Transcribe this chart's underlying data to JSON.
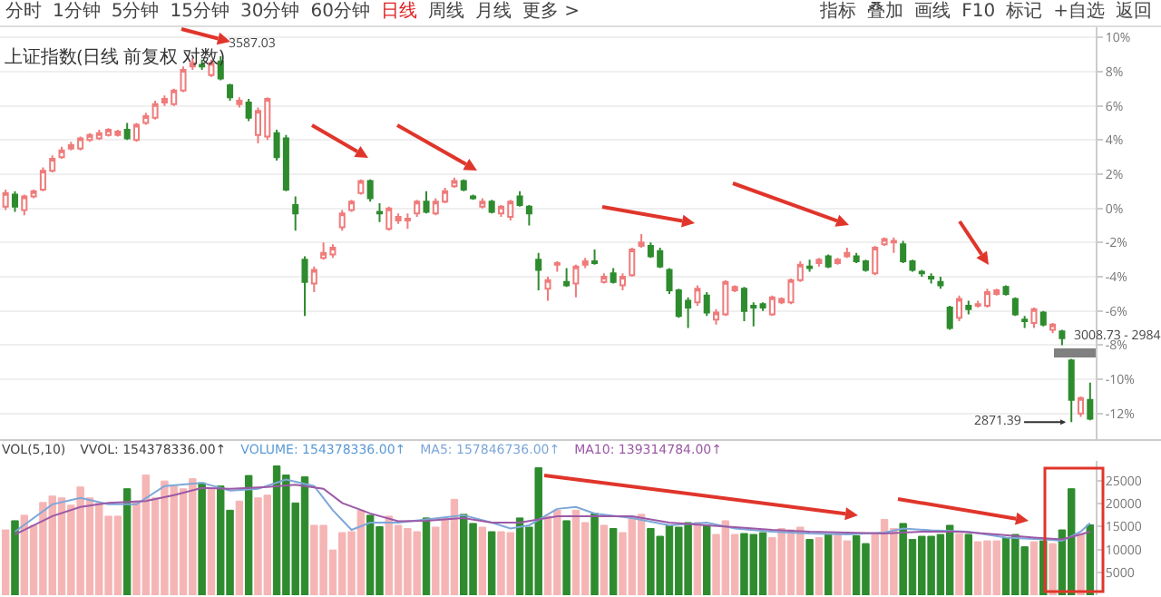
{
  "chart_data": [
    {
      "type": "other",
      "annotations": [
        "分时",
        "1分钟",
        "5分钟",
        "15分钟",
        "30分钟",
        "60分钟",
        "日线",
        "周线",
        "月线",
        "更多 >",
        "指标",
        "叠加",
        "画线",
        "F10",
        "标记",
        "+自选",
        "返回"
      ]
    },
    {
      "type": "candlestick",
      "title": "上证指数(日线 前复权 对数)",
      "categories": [
        null,
        null,
        null,
        null,
        null,
        null,
        null,
        null,
        null,
        null,
        null,
        null,
        null,
        null,
        null,
        null,
        null,
        null,
        null,
        null,
        null,
        null,
        null,
        null,
        null,
        null,
        null,
        null,
        null,
        null,
        null,
        null,
        null,
        null,
        null,
        null,
        null,
        null,
        null,
        null,
        null,
        null,
        null,
        null,
        null,
        null,
        null,
        null,
        null,
        null,
        null,
        null,
        null,
        null,
        null,
        null,
        null,
        null,
        null,
        null,
        null,
        null,
        null,
        null,
        null,
        null,
        null,
        null,
        null,
        null,
        null,
        null,
        null,
        null,
        null,
        null,
        null,
        null,
        null,
        null,
        null,
        null,
        null,
        null,
        null,
        null,
        null,
        null,
        null,
        null,
        null,
        null,
        null,
        null,
        null,
        null,
        null,
        null,
        null,
        null,
        null,
        null,
        null,
        null,
        null,
        null,
        null,
        null,
        null,
        null,
        null,
        null,
        null,
        null,
        null,
        null,
        null
      ],
      "ohlc": [
        [
          0.1,
          1.1,
          -0.1,
          0.9
        ],
        [
          0.8,
          1.0,
          -0.2,
          0.1
        ],
        [
          -0.1,
          0.8,
          -0.4,
          0.7
        ],
        [
          0.7,
          1.1,
          0.6,
          1.0
        ],
        [
          1.1,
          2.4,
          1.0,
          2.2
        ],
        [
          2.2,
          3.1,
          2.1,
          2.9
        ],
        [
          3.0,
          3.6,
          2.9,
          3.4
        ],
        [
          3.5,
          3.9,
          3.4,
          3.7
        ],
        [
          3.5,
          4.2,
          3.4,
          4.1
        ],
        [
          4.0,
          4.4,
          3.9,
          4.3
        ],
        [
          4.1,
          4.6,
          4.0,
          4.4
        ],
        [
          4.3,
          4.7,
          4.2,
          4.6
        ],
        [
          4.3,
          4.6,
          4.2,
          4.5
        ],
        [
          4.6,
          5.0,
          4.0,
          4.1
        ],
        [
          4.0,
          5.0,
          3.9,
          4.9
        ],
        [
          5.0,
          5.6,
          4.9,
          5.4
        ],
        [
          5.3,
          6.3,
          5.2,
          6.1
        ],
        [
          6.2,
          6.6,
          6.0,
          6.4
        ],
        [
          6.1,
          7.0,
          6.0,
          6.9
        ],
        [
          6.9,
          8.3,
          6.8,
          8.1
        ],
        [
          8.3,
          8.8,
          8.1,
          8.5
        ],
        [
          8.4,
          8.7,
          8.1,
          8.3
        ],
        [
          7.8,
          8.7,
          7.7,
          8.5
        ],
        [
          8.6,
          8.9,
          7.5,
          7.6
        ],
        [
          7.2,
          7.3,
          6.3,
          6.5
        ],
        [
          6.1,
          6.5,
          5.9,
          6.3
        ],
        [
          6.2,
          6.4,
          5.1,
          5.3
        ],
        [
          4.3,
          5.9,
          3.8,
          5.7
        ],
        [
          4.2,
          6.5,
          4.0,
          6.4
        ],
        [
          4.4,
          4.6,
          2.8,
          3.0
        ],
        [
          4.1,
          4.3,
          1.0,
          1.1
        ],
        [
          0.2,
          0.7,
          -1.3,
          -0.3
        ],
        [
          -3.0,
          -2.8,
          -6.3,
          -4.3
        ],
        [
          -4.4,
          -3.4,
          -4.9,
          -3.6
        ],
        [
          -2.9,
          -2.0,
          -3.0,
          -2.6
        ],
        [
          -2.7,
          -2.1,
          -2.9,
          -2.3
        ],
        [
          -1.1,
          -0.1,
          -1.3,
          -0.3
        ],
        [
          -0.1,
          0.5,
          -0.2,
          0.4
        ],
        [
          0.9,
          1.7,
          0.8,
          1.6
        ],
        [
          1.6,
          1.7,
          0.4,
          0.6
        ],
        [
          -0.2,
          0.3,
          -0.8,
          -0.3
        ],
        [
          -1.2,
          0.1,
          -1.3,
          0.0
        ],
        [
          -0.7,
          -0.3,
          -0.9,
          -0.5
        ],
        [
          -0.7,
          -0.3,
          -1.2,
          -0.6
        ],
        [
          -0.3,
          0.5,
          -0.5,
          0.4
        ],
        [
          0.4,
          1.0,
          -0.3,
          -0.2
        ],
        [
          -0.3,
          0.6,
          -0.4,
          0.4
        ],
        [
          0.4,
          1.2,
          0.3,
          1.0
        ],
        [
          1.3,
          1.8,
          1.2,
          1.6
        ],
        [
          1.6,
          1.7,
          1.0,
          1.1
        ],
        [
          0.7,
          0.8,
          0.5,
          0.6
        ],
        [
          0.1,
          0.6,
          0.0,
          0.4
        ],
        [
          0.4,
          0.5,
          -0.3,
          -0.2
        ],
        [
          -0.3,
          0.2,
          -0.5,
          0.1
        ],
        [
          -0.5,
          0.5,
          -0.7,
          0.4
        ],
        [
          0.7,
          1.0,
          0.1,
          0.2
        ],
        [
          0.1,
          0.2,
          -1.0,
          -0.3
        ],
        [
          -3.0,
          -2.6,
          -4.8,
          -3.6
        ],
        [
          -4.7,
          -4.0,
          -5.4,
          -4.2
        ],
        [
          -3.3,
          -3.1,
          -3.7,
          -3.2
        ],
        [
          -4.3,
          -3.5,
          -4.6,
          -4.5
        ],
        [
          -4.4,
          -3.3,
          -5.2,
          -3.4
        ],
        [
          -3.3,
          -2.9,
          -3.5,
          -3.1
        ],
        [
          -3.1,
          -2.4,
          -3.3,
          -3.2
        ],
        [
          -4.3,
          -3.8,
          -4.4,
          -4.0
        ],
        [
          -3.8,
          -3.5,
          -4.4,
          -4.3
        ],
        [
          -4.5,
          -3.8,
          -4.8,
          -4.0
        ],
        [
          -3.9,
          -2.3,
          -4.0,
          -2.4
        ],
        [
          -2.2,
          -1.5,
          -2.3,
          -2.0
        ],
        [
          -2.2,
          -2.0,
          -2.9,
          -2.8
        ],
        [
          -2.5,
          -2.3,
          -3.5,
          -3.4
        ],
        [
          -3.6,
          -3.5,
          -5.0,
          -4.8
        ],
        [
          -4.8,
          -4.7,
          -6.4,
          -6.3
        ],
        [
          -5.4,
          -5.2,
          -7.0,
          -5.8
        ],
        [
          -5.5,
          -4.5,
          -5.7,
          -4.7
        ],
        [
          -5.1,
          -4.9,
          -6.3,
          -6.1
        ],
        [
          -6.5,
          -5.9,
          -6.8,
          -6.1
        ],
        [
          -6.2,
          -4.2,
          -6.3,
          -4.3
        ],
        [
          -4.8,
          -4.5,
          -4.9,
          -4.6
        ],
        [
          -4.7,
          -4.6,
          -6.6,
          -6.0
        ],
        [
          -5.7,
          -5.5,
          -6.9,
          -5.8
        ],
        [
          -5.6,
          -5.5,
          -6.0,
          -5.8
        ],
        [
          -6.2,
          -5.1,
          -6.3,
          -5.2
        ],
        [
          -5.5,
          -5.2,
          -5.6,
          -5.3
        ],
        [
          -5.5,
          -4.1,
          -5.6,
          -4.2
        ],
        [
          -4.2,
          -3.1,
          -4.3,
          -3.3
        ],
        [
          -3.4,
          -3.0,
          -3.7,
          -3.5
        ],
        [
          -3.2,
          -2.9,
          -3.4,
          -3.0
        ],
        [
          -2.8,
          -2.7,
          -3.5,
          -3.4
        ],
        [
          -3.2,
          -2.9,
          -3.3,
          -3.0
        ],
        [
          -2.8,
          -2.3,
          -2.9,
          -2.6
        ],
        [
          -2.8,
          -2.6,
          -3.2,
          -3.1
        ],
        [
          -3.1,
          -3.0,
          -3.7,
          -3.6
        ],
        [
          -3.8,
          -2.2,
          -3.9,
          -2.3
        ],
        [
          -2.1,
          -1.7,
          -2.2,
          -1.8
        ],
        [
          -2.0,
          -1.7,
          -2.6,
          -1.9
        ],
        [
          -2.1,
          -1.9,
          -3.2,
          -3.1
        ],
        [
          -3.1,
          -3.0,
          -3.7,
          -3.6
        ],
        [
          -3.7,
          -3.6,
          -4.0,
          -3.8
        ],
        [
          -4.0,
          -3.8,
          -4.4,
          -4.1
        ],
        [
          -4.3,
          -4.0,
          -4.7,
          -4.5
        ],
        [
          -5.8,
          -5.7,
          -7.1,
          -7.0
        ],
        [
          -6.4,
          -5.1,
          -6.6,
          -5.3
        ],
        [
          -5.7,
          -5.4,
          -6.2,
          -5.9
        ],
        [
          -5.7,
          -5.4,
          -5.8,
          -5.6
        ],
        [
          -5.7,
          -4.7,
          -5.8,
          -4.9
        ],
        [
          -5.0,
          -4.7,
          -5.1,
          -4.8
        ],
        [
          -4.6,
          -4.5,
          -5.1,
          -5.0
        ],
        [
          -5.3,
          -5.2,
          -6.3,
          -6.2
        ],
        [
          -6.5,
          -6.3,
          -7.0,
          -6.6
        ],
        [
          -6.7,
          -5.8,
          -7.0,
          -5.9
        ],
        [
          -6.1,
          -6.0,
          -6.9,
          -6.8
        ],
        [
          -7.1,
          -6.7,
          -7.3,
          -6.8
        ],
        [
          -7.2,
          -7.1,
          -8.0,
          -7.6
        ],
        [
          -8.9,
          -8.8,
          -12.5,
          -11.2
        ],
        [
          -12.0,
          -11.0,
          -12.2,
          -11.1
        ],
        [
          -11.2,
          -10.2,
          -12.4,
          -12.3
        ]
      ],
      "ylim": [
        -13.5,
        10.6
      ],
      "yticks": [
        {
          "value": 10,
          "label": "10%"
        },
        {
          "value": 8,
          "label": "8%"
        },
        {
          "value": 6,
          "label": "6%"
        },
        {
          "value": 4,
          "label": "4%"
        },
        {
          "value": 2,
          "label": "2%"
        },
        {
          "value": 0,
          "label": "0%"
        },
        {
          "value": -2,
          "label": "-2%"
        },
        {
          "value": -4,
          "label": "-4%"
        },
        {
          "value": -6,
          "label": "-6%"
        },
        {
          "value": -8,
          "label": "-8%"
        },
        {
          "value": -10,
          "label": "-10%"
        },
        {
          "value": -12,
          "label": "-12%"
        }
      ],
      "grid": "y",
      "tick_labels": "y",
      "annotations": [
        "3587.03",
        "2871.39",
        "3008.73 - 2984"
      ]
    },
    {
      "type": "bar",
      "categories": [
        null,
        null,
        null,
        null,
        null,
        null,
        null,
        null,
        null,
        null,
        null,
        null,
        null,
        null,
        null,
        null,
        null,
        null,
        null,
        null,
        null,
        null,
        null,
        null,
        null,
        null,
        null,
        null,
        null,
        null,
        null,
        null,
        null,
        null,
        null,
        null,
        null,
        null,
        null,
        null,
        null,
        null,
        null,
        null,
        null,
        null,
        null,
        null,
        null,
        null,
        null,
        null,
        null,
        null,
        null,
        null,
        null,
        null,
        null,
        null,
        null,
        null,
        null,
        null,
        null,
        null,
        null,
        null,
        null,
        null,
        null,
        null,
        null,
        null,
        null,
        null,
        null,
        null,
        null,
        null,
        null,
        null,
        null,
        null,
        null,
        null,
        null,
        null,
        null,
        null,
        null,
        null,
        null,
        null,
        null,
        null,
        null,
        null,
        null,
        null,
        null,
        null,
        null,
        null,
        null,
        null,
        null,
        null,
        null,
        null,
        null,
        null,
        null,
        null,
        null,
        null,
        null
      ],
      "series": [
        {
          "type": "bar",
          "values": [
            14300,
            16300,
            17500,
            15300,
            20300,
            21700,
            21300,
            19700,
            23700,
            21300,
            20200,
            17300,
            17300,
            23300,
            20600,
            26300,
            21300,
            25000,
            23900,
            23300,
            25500,
            24600,
            23300,
            23900,
            18600,
            20600,
            26200,
            21300,
            21900,
            28300,
            26300,
            20200,
            25900,
            15300,
            15300,
            9900,
            13700,
            13900,
            18600,
            17500,
            15000,
            17300,
            15300,
            14600,
            13900,
            16900,
            14900,
            16900,
            21000,
            17700,
            15700,
            14900,
            13900,
            13900,
            13700,
            16900,
            14900,
            27900,
            17300,
            18600,
            16300,
            18600,
            15900,
            17900,
            15300,
            14600,
            13700,
            17300,
            17700,
            14600,
            12900,
            15300,
            14900,
            15900,
            15900,
            15300,
            13300,
            16300,
            13300,
            13500,
            13300,
            13700,
            12600,
            14600,
            14300,
            14900,
            12200,
            12600,
            13300,
            13500,
            11900,
            13000,
            11300,
            13300,
            16600,
            14600,
            15700,
            12200,
            12900,
            12900,
            13300,
            15300,
            13500,
            13300,
            11700,
            11900,
            11900,
            12600,
            13300,
            10600,
            11700,
            11900,
            11300,
            14300,
            23300,
            13300,
            15400
          ],
          "colors": [
            "#f5b5b5",
            "#2e8b2e",
            "#f5b5b5",
            "#f5b5b5",
            "#f5b5b5",
            "#f5b5b5",
            "#f5b5b5",
            "#f5b5b5",
            "#f5b5b5",
            "#f5b5b5",
            "#f5b5b5",
            "#f5b5b5",
            "#f5b5b5",
            "#2e8b2e",
            "#f5b5b5",
            "#f5b5b5",
            "#f5b5b5",
            "#f5b5b5",
            "#f5b5b5",
            "#f5b5b5",
            "#f5b5b5",
            "#2e8b2e",
            "#f5b5b5",
            "#2e8b2e",
            "#2e8b2e",
            "#f5b5b5",
            "#2e8b2e",
            "#f5b5b5",
            "#f5b5b5",
            "#2e8b2e",
            "#2e8b2e",
            "#2e8b2e",
            "#2e8b2e",
            "#f5b5b5",
            "#f5b5b5",
            "#f5b5b5",
            "#f5b5b5",
            "#f5b5b5",
            "#f5b5b5",
            "#2e8b2e",
            "#2e8b2e",
            "#f5b5b5",
            "#f5b5b5",
            "#f5b5b5",
            "#f5b5b5",
            "#2e8b2e",
            "#f5b5b5",
            "#f5b5b5",
            "#f5b5b5",
            "#2e8b2e",
            "#2e8b2e",
            "#f5b5b5",
            "#2e8b2e",
            "#f5b5b5",
            "#f5b5b5",
            "#2e8b2e",
            "#2e8b2e",
            "#2e8b2e",
            "#f5b5b5",
            "#f5b5b5",
            "#2e8b2e",
            "#f5b5b5",
            "#f5b5b5",
            "#2e8b2e",
            "#f5b5b5",
            "#2e8b2e",
            "#f5b5b5",
            "#f5b5b5",
            "#f5b5b5",
            "#2e8b2e",
            "#2e8b2e",
            "#2e8b2e",
            "#2e8b2e",
            "#2e8b2e",
            "#f5b5b5",
            "#2e8b2e",
            "#f5b5b5",
            "#f5b5b5",
            "#f5b5b5",
            "#2e8b2e",
            "#2e8b2e",
            "#2e8b2e",
            "#f5b5b5",
            "#f5b5b5",
            "#f5b5b5",
            "#f5b5b5",
            "#2e8b2e",
            "#f5b5b5",
            "#2e8b2e",
            "#f5b5b5",
            "#f5b5b5",
            "#2e8b2e",
            "#2e8b2e",
            "#f5b5b5",
            "#f5b5b5",
            "#f5b5b5",
            "#2e8b2e",
            "#2e8b2e",
            "#2e8b2e",
            "#2e8b2e",
            "#2e8b2e",
            "#2e8b2e",
            "#f5b5b5",
            "#2e8b2e",
            "#f5b5b5",
            "#f5b5b5",
            "#f5b5b5",
            "#2e8b2e",
            "#2e8b2e",
            "#2e8b2e",
            "#f5b5b5",
            "#2e8b2e",
            "#f5b5b5",
            "#2e8b2e",
            "#2e8b2e",
            "#f5b5b5",
            "#2e8b2e"
          ]
        },
        {
          "type": "line",
          "color": "#7da7d9",
          "values": [
            null,
            13900,
            null,
            null,
            null,
            19900,
            null,
            null,
            21300,
            null,
            null,
            19900,
            null,
            null,
            19900,
            null,
            null,
            23900,
            null,
            null,
            null,
            24600,
            null,
            null,
            22900,
            null,
            null,
            23300,
            null,
            null,
            25300,
            null,
            null,
            23900,
            null,
            18600,
            null,
            14300,
            null,
            15900,
            null,
            null,
            15900,
            null,
            null,
            16600,
            null,
            null,
            null,
            17500,
            null,
            null,
            15900,
            null,
            14600,
            null,
            15300,
            null,
            null,
            18900,
            null,
            19300,
            null,
            17900,
            null,
            null,
            null,
            16900,
            null,
            null,
            null,
            15300,
            null,
            null,
            null,
            15900,
            null,
            null,
            14600,
            null,
            null,
            null,
            13900,
            null,
            null,
            null,
            13500,
            null,
            null,
            null,
            13300,
            null,
            null,
            null,
            13700,
            null,
            14600,
            null,
            null,
            14200,
            null,
            null,
            null,
            13900,
            null,
            null,
            null,
            12600,
            null,
            null,
            null,
            12200,
            null,
            11900,
            null,
            13900,
            15800
          ]
        },
        {
          "type": "line",
          "color": "#9b59a6",
          "values": [
            null,
            13300,
            null,
            null,
            null,
            17300,
            null,
            null,
            19300,
            null,
            null,
            20200,
            null,
            null,
            null,
            20600,
            null,
            null,
            21900,
            null,
            null,
            23500,
            null,
            null,
            23300,
            null,
            null,
            null,
            23700,
            null,
            null,
            24200,
            null,
            null,
            23300,
            null,
            20200,
            null,
            null,
            17900,
            null,
            null,
            16200,
            null,
            null,
            16300,
            null,
            null,
            null,
            16900,
            null,
            null,
            15900,
            null,
            null,
            15900,
            null,
            null,
            null,
            17300,
            null,
            null,
            17300,
            null,
            null,
            null,
            null,
            17300,
            null,
            null,
            null,
            15900,
            null,
            null,
            null,
            15300,
            null,
            null,
            14900,
            null,
            null,
            null,
            14300,
            null,
            null,
            null,
            13900,
            null,
            null,
            null,
            13700,
            null,
            null,
            null,
            13500,
            null,
            null,
            null,
            13900,
            null,
            null,
            null,
            13900,
            null,
            null,
            null,
            13300,
            null,
            null,
            null,
            12600,
            null,
            null,
            12200,
            null,
            13300,
            13900
          ]
        }
      ],
      "ylim": [
        0,
        29400
      ],
      "yticks": [
        5000,
        10000,
        15000,
        20000,
        25000
      ],
      "tick_labels": "y",
      "annotations": [
        "VOL(5,10)",
        "VVOL: 154378336.00↑",
        "VOLUME: 154378336.00↑",
        "MA5: 157846736.00↑",
        "MA10: 139314784.00↑"
      ]
    }
  ]
}
